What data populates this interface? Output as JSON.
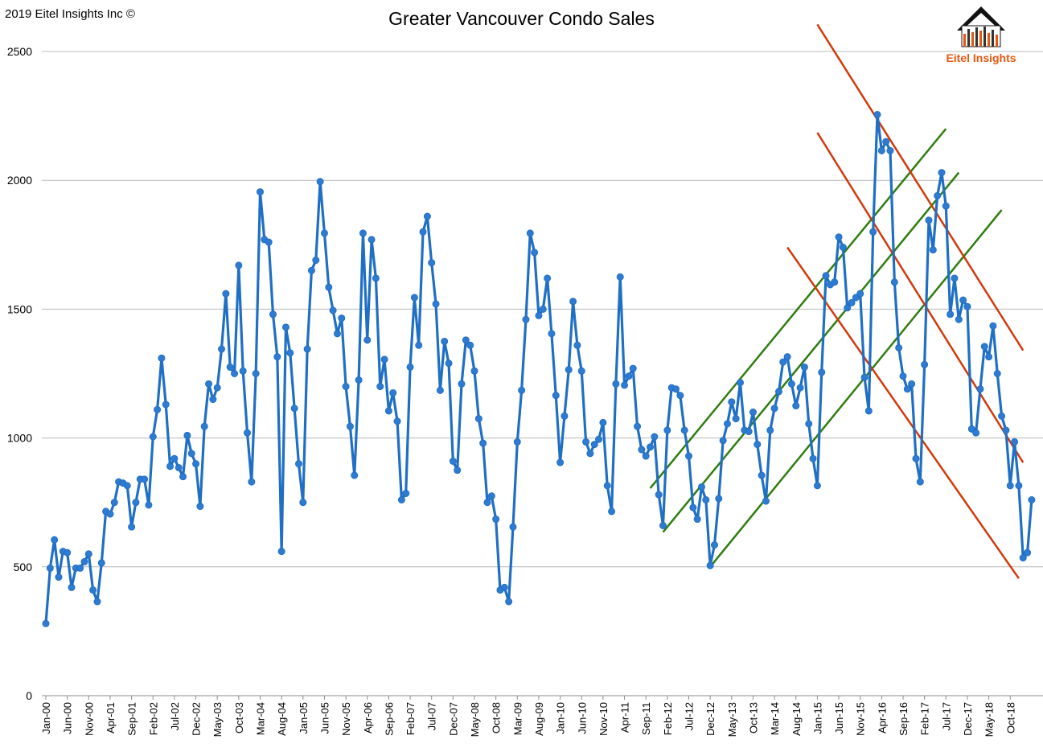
{
  "copyright": "2019 Eitel Insights Inc ©",
  "logo_text": "Eitel Insights",
  "colors": {
    "series": "#1f6fc5",
    "series_marker": "#2f7bd1",
    "grid": "#b8b8b8",
    "trend_green": "#2e7d0f",
    "trend_red": "#d13a0b",
    "logo_orange": "#e8570f"
  },
  "chart_data": {
    "type": "line",
    "title": "Greater Vancouver Condo Sales",
    "xlabel": "",
    "ylabel": "",
    "ylim": [
      0,
      2500
    ],
    "yticks": [
      0,
      500,
      1000,
      1500,
      2000,
      2500
    ],
    "grid": true,
    "start": "Jan-00",
    "xtick_labels": [
      "Jan-00",
      "Jun-00",
      "Nov-00",
      "Apr-01",
      "Sep-01",
      "Feb-02",
      "Jul-02",
      "Dec-02",
      "May-03",
      "Oct-03",
      "Mar-04",
      "Aug-04",
      "Jan-05",
      "Jun-05",
      "Nov-05",
      "Apr-06",
      "Sep-06",
      "Feb-07",
      "Jul-07",
      "Dec-07",
      "May-08",
      "Oct-08",
      "Mar-09",
      "Aug-09",
      "Jan-10",
      "Jun-10",
      "Nov-10",
      "Apr-11",
      "Sep-11",
      "Feb-12",
      "Jul-12",
      "Dec-12",
      "May-13",
      "Oct-13",
      "Mar-14",
      "Aug-14",
      "Jan-15",
      "Jun-15",
      "Nov-15",
      "Apr-16",
      "Sep-16",
      "Feb-17",
      "Jul-17",
      "Dec-17",
      "May-18",
      "Oct-18"
    ],
    "series": [
      {
        "values": [
          280,
          495,
          605,
          460,
          560,
          555,
          420,
          495,
          495,
          520,
          550,
          410,
          365,
          515,
          715,
          705,
          750,
          830,
          825,
          815,
          655,
          750,
          840,
          840,
          740,
          1005,
          1110,
          1310,
          1130,
          890,
          920,
          885,
          850,
          1010,
          940,
          900,
          735,
          1045,
          1210,
          1150,
          1195,
          1345,
          1560,
          1275,
          1250,
          1670,
          1260,
          1020,
          830,
          1250,
          1955,
          1770,
          1760,
          1480,
          1315,
          560,
          1430,
          1330,
          1115,
          900,
          750,
          1345,
          1650,
          1690,
          1995,
          1795,
          1585,
          1495,
          1405,
          1465,
          1200,
          1045,
          855,
          1225,
          1795,
          1380,
          1770,
          1620,
          1200,
          1305,
          1105,
          1175,
          1065,
          760,
          785,
          1275,
          1545,
          1360,
          1800,
          1860,
          1680,
          1520,
          1185,
          1375,
          1290,
          910,
          875,
          1210,
          1380,
          1360,
          1260,
          1075,
          980,
          750,
          775,
          685,
          410,
          420,
          365,
          655,
          985,
          1185,
          1460,
          1795,
          1720,
          1475,
          1500,
          1620,
          1405,
          1165,
          905,
          1085,
          1265,
          1530,
          1360,
          1260,
          985,
          940,
          975,
          995,
          1060,
          815,
          715,
          1210,
          1625,
          1205,
          1240,
          1270,
          1045,
          955,
          930,
          965,
          1005,
          780,
          660,
          1030,
          1195,
          1190,
          1165,
          1030,
          930,
          730,
          685,
          810,
          760,
          505,
          585,
          765,
          990,
          1055,
          1140,
          1075,
          1215,
          1030,
          1025,
          1100,
          975,
          855,
          755,
          1030,
          1115,
          1180,
          1295,
          1315,
          1210,
          1125,
          1195,
          1275,
          1055,
          920,
          815,
          1255,
          1630,
          1595,
          1605,
          1780,
          1740,
          1505,
          1525,
          1545,
          1560,
          1235,
          1105,
          1800,
          2255,
          2115,
          2150,
          2115,
          1605,
          1350,
          1240,
          1190,
          1210,
          920,
          830,
          1285,
          1845,
          1730,
          1940,
          2030,
          1900,
          1480,
          1620,
          1460,
          1535,
          1510,
          1035,
          1020,
          1190,
          1355,
          1315,
          1435,
          1250,
          1085,
          1030,
          815,
          985,
          815,
          535,
          555,
          760
        ]
      }
    ],
    "trend_lines": {
      "green_channel": [
        {
          "from": [
            "Oct-11",
            805
          ],
          "to": [
            "Jul-17",
            2200
          ]
        },
        {
          "from": [
            "Jan-12",
            635
          ],
          "to": [
            "Oct-17",
            2030
          ]
        },
        {
          "from": [
            "Dec-12",
            500
          ],
          "to": [
            "Aug-18",
            1885
          ]
        }
      ],
      "red_channel": [
        {
          "from": [
            "Jan-15",
            2605
          ],
          "to": [
            "Jan-19",
            1340
          ]
        },
        {
          "from": [
            "Jan-15",
            2185
          ],
          "to": [
            "Jan-19",
            905
          ]
        },
        {
          "from": [
            "Jun-14",
            1740
          ],
          "to": [
            "Dec-18",
            455
          ]
        }
      ]
    }
  }
}
